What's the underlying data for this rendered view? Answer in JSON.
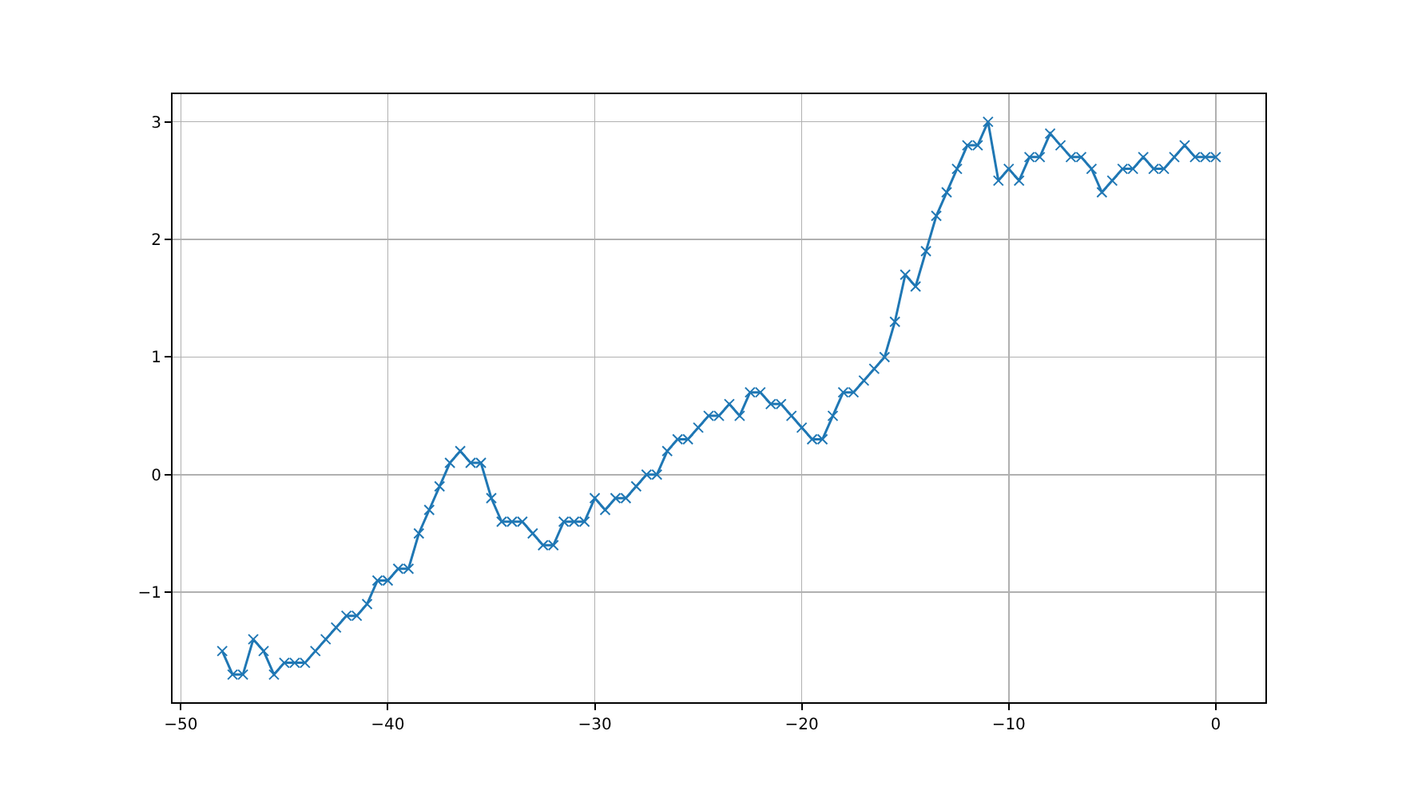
{
  "chart_data": {
    "type": "line",
    "x": [
      -48,
      -47.5,
      -47,
      -46.5,
      -46,
      -45.5,
      -45,
      -44.5,
      -44,
      -43.5,
      -43,
      -42.5,
      -42,
      -41.5,
      -41,
      -40.5,
      -40,
      -39.5,
      -39,
      -38.5,
      -38,
      -37.5,
      -37,
      -36.5,
      -36,
      -35.5,
      -35,
      -34.5,
      -34,
      -33.5,
      -33,
      -32.5,
      -32,
      -31.5,
      -31,
      -30.5,
      -30,
      -29.5,
      -29,
      -28.5,
      -28,
      -27.5,
      -27,
      -26.5,
      -26,
      -25.5,
      -25,
      -24.5,
      -24,
      -23.5,
      -23,
      -22.5,
      -22,
      -21.5,
      -21,
      -20.5,
      -20,
      -19.5,
      -19,
      -18.5,
      -18,
      -17.5,
      -17,
      -16.5,
      -16,
      -15.5,
      -15,
      -14.5,
      -14,
      -13.5,
      -13,
      -12.5,
      -12,
      -11.5,
      -11,
      -10.5,
      -10,
      -9.5,
      -9,
      -8.5,
      -8,
      -7.5,
      -7,
      -6.5,
      -6,
      -5.5,
      -5,
      -4.5,
      -4,
      -3.5,
      -3,
      -2.5,
      -2,
      -1.5,
      -1,
      -0.5,
      0
    ],
    "values": [
      -1.5,
      -1.7,
      -1.7,
      -1.4,
      -1.5,
      -1.7,
      -1.6,
      -1.6,
      -1.6,
      -1.5,
      -1.4,
      -1.3,
      -1.2,
      -1.2,
      -1.1,
      -0.9,
      -0.9,
      -0.8,
      -0.8,
      -0.5,
      -0.3,
      -0.1,
      0.1,
      0.2,
      0.1,
      0.1,
      -0.2,
      -0.4,
      -0.4,
      -0.4,
      -0.5,
      -0.6,
      -0.6,
      -0.4,
      -0.4,
      -0.4,
      -0.2,
      -0.3,
      -0.2,
      -0.2,
      -0.1,
      0.0,
      0.0,
      0.2,
      0.3,
      0.3,
      0.4,
      0.5,
      0.5,
      0.6,
      0.5,
      0.7,
      0.7,
      0.6,
      0.6,
      0.5,
      0.4,
      0.3,
      0.3,
      0.5,
      0.7,
      0.7,
      0.8,
      0.9,
      1.0,
      1.3,
      1.7,
      1.6,
      1.9,
      2.2,
      2.4,
      2.6,
      2.8,
      2.8,
      3.0,
      2.5,
      2.6,
      2.5,
      2.7,
      2.7,
      2.9,
      2.8,
      2.7,
      2.7,
      2.6,
      2.4,
      2.5,
      2.6,
      2.6,
      2.7,
      2.6,
      2.6,
      2.7,
      2.8,
      2.7,
      2.7,
      2.7
    ],
    "color": "#1f77b4",
    "xlim": [
      -50.4,
      2.4
    ],
    "xticks": [
      -50,
      -40,
      -30,
      -20,
      -10,
      0
    ],
    "ylim": [
      -1.935,
      3.235
    ],
    "yticks": [
      -1,
      0,
      1,
      2,
      3
    ],
    "grid": true,
    "marker": "cross",
    "line_style": "solid"
  }
}
